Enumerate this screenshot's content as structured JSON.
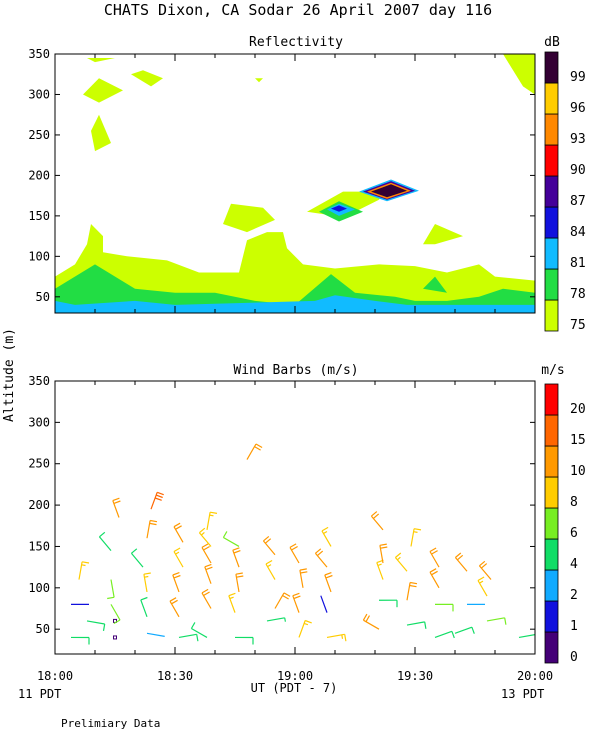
{
  "figure": {
    "title": "CHATS Dixon, CA  Sodar  26 April 2007  day 116",
    "ylabel": "Altitude (m)",
    "xlabel": "UT  (PDT - 7)",
    "left_date": "11 PDT",
    "right_date": "13 PDT",
    "footnote": "Prelimiary Data"
  },
  "colors": {
    "reflectivity": {
      "75": "#ccff00",
      "78": "#22dd44",
      "81": "#11bbff",
      "84": "#1111dd",
      "87": "#440099",
      "90": "#ff0000",
      "93": "#ff8800",
      "96": "#ffcc00",
      "99": "#330033"
    },
    "wind": {
      "0": "#440077",
      "1": "#1111dd",
      "2": "#11aaff",
      "4": "#11dd66",
      "6": "#77ee22",
      "8": "#ffcc00",
      "10": "#ff9900",
      "15": "#ff6600",
      "20": "#ff0000"
    }
  },
  "chart_data": [
    {
      "type": "heatmap",
      "title": "Reflectivity",
      "colorbar_title": "dB",
      "levels": [
        75,
        78,
        81,
        84,
        87,
        90,
        93,
        96,
        99
      ],
      "x_ticks": [
        "18:00",
        "18:30",
        "19:00",
        "19:30",
        "20:00"
      ],
      "xlim": [
        "18:00",
        "20:00"
      ],
      "y_ticks": [
        50,
        100,
        150,
        200,
        250,
        300,
        350
      ],
      "ylim": [
        30,
        350
      ],
      "regions": [
        {
          "level": 75,
          "points": [
            [
              "18:00",
              30
            ],
            [
              "18:00",
              75
            ],
            [
              "18:05",
              90
            ],
            [
              "18:08",
              115
            ],
            [
              "18:09",
              140
            ],
            [
              "18:12",
              125
            ],
            [
              "18:12",
              105
            ],
            [
              "18:18",
              100
            ],
            [
              "18:28",
              95
            ],
            [
              "18:36",
              80
            ],
            [
              "18:46",
              80
            ],
            [
              "18:48",
              120
            ],
            [
              "18:53",
              130
            ],
            [
              "18:57",
              130
            ],
            [
              "18:58",
              110
            ],
            [
              "19:02",
              90
            ],
            [
              "19:10",
              85
            ],
            [
              "19:21",
              90
            ],
            [
              "19:30",
              88
            ],
            [
              "19:38",
              80
            ],
            [
              "19:46",
              90
            ],
            [
              "19:50",
              75
            ],
            [
              "20:00",
              70
            ],
            [
              "20:00",
              30
            ]
          ]
        },
        {
          "level": 75,
          "points": [
            [
              "18:42",
              140
            ],
            [
              "18:44",
              165
            ],
            [
              "18:52",
              160
            ],
            [
              "18:55",
              145
            ],
            [
              "18:48",
              130
            ]
          ]
        },
        {
          "level": 75,
          "points": [
            [
              "19:03",
              155
            ],
            [
              "19:12",
              180
            ],
            [
              "19:22",
              180
            ],
            [
              "19:21",
              170
            ],
            [
              "19:15",
              155
            ],
            [
              "19:10",
              150
            ]
          ]
        },
        {
          "level": 75,
          "points": [
            [
              "19:32",
              115
            ],
            [
              "19:35",
              140
            ],
            [
              "19:42",
              125
            ],
            [
              "19:35",
              115
            ]
          ]
        },
        {
          "level": 75,
          "points": [
            [
              "18:08",
              345
            ],
            [
              "18:15",
              345
            ],
            [
              "18:10",
              340
            ]
          ]
        },
        {
          "level": 75,
          "points": [
            [
              "18:07",
              300
            ],
            [
              "18:11",
              320
            ],
            [
              "18:17",
              305
            ],
            [
              "18:11",
              290
            ]
          ]
        },
        {
          "level": 75,
          "points": [
            [
              "18:09",
              255
            ],
            [
              "18:11",
              275
            ],
            [
              "18:14",
              240
            ],
            [
              "18:10",
              230
            ]
          ]
        },
        {
          "level": 75,
          "points": [
            [
              "18:19",
              325
            ],
            [
              "18:24",
              310
            ],
            [
              "18:27",
              320
            ],
            [
              "18:22",
              330
            ]
          ]
        },
        {
          "level": 75,
          "points": [
            [
              "18:50",
              320
            ],
            [
              "18:51",
              315
            ],
            [
              "18:52",
              320
            ]
          ]
        },
        {
          "level": 75,
          "points": [
            [
              "19:52",
              350
            ],
            [
              "20:00",
              350
            ],
            [
              "20:00",
              300
            ],
            [
              "19:57",
              310
            ]
          ]
        },
        {
          "level": 78,
          "points": [
            [
              "18:00",
              30
            ],
            [
              "18:00",
              60
            ],
            [
              "18:10",
              90
            ],
            [
              "18:20",
              60
            ],
            [
              "18:30",
              55
            ],
            [
              "18:40",
              55
            ],
            [
              "18:50",
              45
            ],
            [
              "19:00",
              40
            ],
            [
              "19:09",
              78
            ],
            [
              "19:15",
              55
            ],
            [
              "19:25",
              50
            ],
            [
              "19:30",
              45
            ],
            [
              "19:38",
              45
            ],
            [
              "19:46",
              50
            ],
            [
              "19:52",
              60
            ],
            [
              "20:00",
              55
            ],
            [
              "20:00",
              30
            ]
          ]
        },
        {
          "level": 78,
          "points": [
            [
              "19:32",
              60
            ],
            [
              "19:35",
              75
            ],
            [
              "19:38",
              55
            ]
          ]
        },
        {
          "level": 78,
          "points": [
            [
              "19:06",
              155
            ],
            [
              "19:11",
              168
            ],
            [
              "19:17",
              155
            ],
            [
              "19:11",
              143
            ]
          ]
        },
        {
          "level": 81,
          "points": [
            [
              "18:00",
              30
            ],
            [
              "18:00",
              45
            ],
            [
              "18:05",
              40
            ],
            [
              "18:20",
              45
            ],
            [
              "18:30",
              40
            ],
            [
              "19:05",
              45
            ],
            [
              "19:10",
              52
            ],
            [
              "19:20",
              45
            ],
            [
              "19:28",
              40
            ],
            [
              "20:00",
              40
            ],
            [
              "20:00",
              30
            ]
          ]
        },
        {
          "level": 81,
          "points": [
            [
              "19:08",
              158
            ],
            [
              "19:11",
              165
            ],
            [
              "19:15",
              158
            ],
            [
              "19:11",
              150
            ]
          ]
        },
        {
          "level": 84,
          "points": [
            [
              "19:09",
              159
            ],
            [
              "19:11",
              163
            ],
            [
              "19:13",
              159
            ],
            [
              "19:11",
              155
            ]
          ]
        },
        {
          "level": 81,
          "points": [
            [
              "19:16",
              180
            ],
            [
              "19:24",
              195
            ],
            [
              "19:31",
              181
            ],
            [
              "19:23",
              168
            ]
          ]
        },
        {
          "level": 87,
          "points": [
            [
              "19:17",
              180
            ],
            [
              "19:24",
              193
            ],
            [
              "19:30",
              181
            ],
            [
              "19:23",
              170
            ]
          ]
        },
        {
          "level": 93,
          "points": [
            [
              "19:18",
              180
            ],
            [
              "19:24",
              191
            ],
            [
              "19:29",
              181
            ],
            [
              "19:23",
              171
            ]
          ]
        },
        {
          "level": 99,
          "points": [
            [
              "19:19",
              180
            ],
            [
              "19:24",
              189
            ],
            [
              "19:28",
              181
            ],
            [
              "19:23",
              173
            ]
          ]
        }
      ]
    },
    {
      "type": "scatter",
      "title": "Wind Barbs (m/s)",
      "colorbar_title": "m/s",
      "levels": [
        0,
        1,
        2,
        4,
        6,
        8,
        10,
        15,
        20
      ],
      "x_ticks": [
        "18:00",
        "18:30",
        "19:00",
        "19:30",
        "20:00"
      ],
      "xlim": [
        "18:00",
        "20:00"
      ],
      "y_ticks": [
        50,
        100,
        150,
        200,
        250,
        300,
        350
      ],
      "ylim": [
        20,
        350
      ],
      "barbs": [
        {
          "t": "18:04",
          "alt": 40,
          "speed": 5,
          "dir": 90
        },
        {
          "t": "18:04",
          "alt": 80,
          "speed": 1,
          "dir": 90
        },
        {
          "t": "18:06",
          "alt": 110,
          "speed": 9,
          "dir": 10
        },
        {
          "t": "18:08",
          "alt": 60,
          "speed": 5,
          "dir": 100
        },
        {
          "t": "18:15",
          "alt": 40,
          "speed": 0,
          "dir": 0
        },
        {
          "t": "18:15",
          "alt": 60,
          "speed": 0,
          "dir": 0
        },
        {
          "t": "18:14",
          "alt": 80,
          "speed": 6,
          "dir": 150
        },
        {
          "t": "18:14",
          "alt": 110,
          "speed": 7,
          "dir": 170
        },
        {
          "t": "18:14",
          "alt": 145,
          "speed": 5,
          "dir": 320
        },
        {
          "t": "18:16",
          "alt": 185,
          "speed": 11,
          "dir": 340
        },
        {
          "t": "18:23",
          "alt": 45,
          "speed": 2,
          "dir": 100
        },
        {
          "t": "18:23",
          "alt": 65,
          "speed": 5,
          "dir": 340
        },
        {
          "t": "18:23",
          "alt": 95,
          "speed": 9,
          "dir": 350
        },
        {
          "t": "18:22",
          "alt": 125,
          "speed": 5,
          "dir": 320
        },
        {
          "t": "18:23",
          "alt": 160,
          "speed": 11,
          "dir": 10
        },
        {
          "t": "18:24",
          "alt": 195,
          "speed": 15,
          "dir": 20
        },
        {
          "t": "18:31",
          "alt": 40,
          "speed": 5,
          "dir": 80
        },
        {
          "t": "18:31",
          "alt": 65,
          "speed": 10,
          "dir": 330
        },
        {
          "t": "18:31",
          "alt": 95,
          "speed": 10,
          "dir": 340
        },
        {
          "t": "18:32",
          "alt": 125,
          "speed": 9,
          "dir": 330
        },
        {
          "t": "18:32",
          "alt": 155,
          "speed": 10,
          "dir": 330
        },
        {
          "t": "18:38",
          "alt": 40,
          "speed": 5,
          "dir": 300
        },
        {
          "t": "18:39",
          "alt": 75,
          "speed": 10,
          "dir": 330
        },
        {
          "t": "18:39",
          "alt": 105,
          "speed": 11,
          "dir": 340
        },
        {
          "t": "18:39",
          "alt": 130,
          "speed": 10,
          "dir": 330
        },
        {
          "t": "18:39",
          "alt": 150,
          "speed": 9,
          "dir": 320
        },
        {
          "t": "18:38",
          "alt": 170,
          "speed": 9,
          "dir": 10
        },
        {
          "t": "18:45",
          "alt": 40,
          "speed": 5,
          "dir": 90
        },
        {
          "t": "18:45",
          "alt": 70,
          "speed": 9,
          "dir": 340
        },
        {
          "t": "18:46",
          "alt": 95,
          "speed": 10,
          "dir": 350
        },
        {
          "t": "18:46",
          "alt": 125,
          "speed": 10,
          "dir": 340
        },
        {
          "t": "18:46",
          "alt": 150,
          "speed": 7,
          "dir": 300
        },
        {
          "t": "18:48",
          "alt": 255,
          "speed": 12,
          "dir": 30
        },
        {
          "t": "18:53",
          "alt": 60,
          "speed": 4,
          "dir": 80
        },
        {
          "t": "18:55",
          "alt": 75,
          "speed": 10,
          "dir": 30
        },
        {
          "t": "18:55",
          "alt": 110,
          "speed": 9,
          "dir": 330
        },
        {
          "t": "18:55",
          "alt": 140,
          "speed": 10,
          "dir": 320
        },
        {
          "t": "19:01",
          "alt": 40,
          "speed": 9,
          "dir": 20
        },
        {
          "t": "19:01",
          "alt": 70,
          "speed": 10,
          "dir": 340
        },
        {
          "t": "19:02",
          "alt": 100,
          "speed": 12,
          "dir": 350
        },
        {
          "t": "19:01",
          "alt": 130,
          "speed": 10,
          "dir": 330
        },
        {
          "t": "19:08",
          "alt": 40,
          "speed": 9,
          "dir": 80
        },
        {
          "t": "19:08",
          "alt": 70,
          "speed": 1,
          "dir": 340
        },
        {
          "t": "19:09",
          "alt": 95,
          "speed": 10,
          "dir": 340
        },
        {
          "t": "19:08",
          "alt": 125,
          "speed": 10,
          "dir": 320
        },
        {
          "t": "19:09",
          "alt": 150,
          "speed": 9,
          "dir": 330
        },
        {
          "t": "19:21",
          "alt": 50,
          "speed": 10,
          "dir": 300
        },
        {
          "t": "19:21",
          "alt": 85,
          "speed": 5,
          "dir": 90
        },
        {
          "t": "19:22",
          "alt": 110,
          "speed": 9,
          "dir": 340
        },
        {
          "t": "19:22",
          "alt": 130,
          "speed": 10,
          "dir": 350
        },
        {
          "t": "19:22",
          "alt": 170,
          "speed": 10,
          "dir": 320
        },
        {
          "t": "19:28",
          "alt": 55,
          "speed": 5,
          "dir": 80
        },
        {
          "t": "19:28",
          "alt": 85,
          "speed": 10,
          "dir": 10
        },
        {
          "t": "19:28",
          "alt": 120,
          "speed": 9,
          "dir": 320
        },
        {
          "t": "19:29",
          "alt": 150,
          "speed": 9,
          "dir": 10
        },
        {
          "t": "19:35",
          "alt": 40,
          "speed": 5,
          "dir": 70
        },
        {
          "t": "19:35",
          "alt": 80,
          "speed": 6,
          "dir": 90
        },
        {
          "t": "19:36",
          "alt": 100,
          "speed": 10,
          "dir": 330
        },
        {
          "t": "19:36",
          "alt": 125,
          "speed": 10,
          "dir": 330
        },
        {
          "t": "19:40",
          "alt": 45,
          "speed": 5,
          "dir": 70
        },
        {
          "t": "19:43",
          "alt": 80,
          "speed": 2,
          "dir": 90
        },
        {
          "t": "19:43",
          "alt": 120,
          "speed": 10,
          "dir": 320
        },
        {
          "t": "19:48",
          "alt": 60,
          "speed": 6,
          "dir": 80
        },
        {
          "t": "19:48",
          "alt": 90,
          "speed": 9,
          "dir": 330
        },
        {
          "t": "19:49",
          "alt": 110,
          "speed": 10,
          "dir": 320
        },
        {
          "t": "19:56",
          "alt": 40,
          "speed": 4,
          "dir": 80
        }
      ]
    }
  ]
}
